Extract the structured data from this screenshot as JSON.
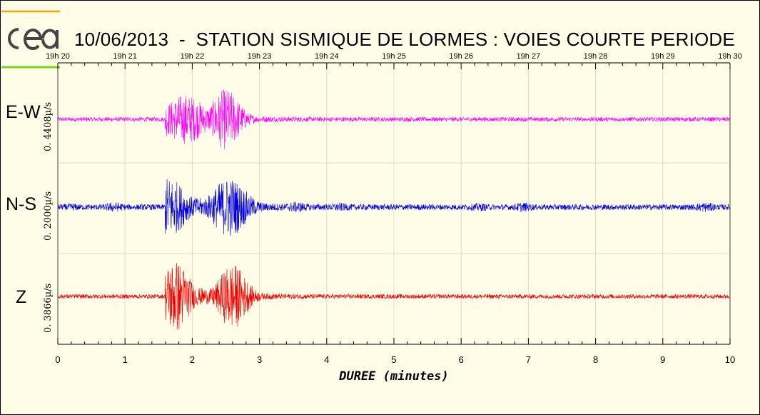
{
  "header": {
    "title": "10/06/2013  -  STATION SISMIQUE DE LORMES : VOIES COURTE PERIODE",
    "logo_text": "cea"
  },
  "chart_data": {
    "type": "line",
    "title": "10/06/2013  -  STATION SISMIQUE DE LORMES : VOIES COURTE PERIODE",
    "xlabel": "DUREE (minutes)",
    "xlim": [
      0,
      10
    ],
    "x_ticks": [
      "0",
      "1",
      "2",
      "3",
      "4",
      "5",
      "6",
      "7",
      "8",
      "9",
      "10"
    ],
    "top_ticks": [
      "19h 20",
      "19h 21",
      "19h 22",
      "19h 23",
      "19h 24",
      "19h 25",
      "19h 26",
      "19h 27",
      "19h 28",
      "19h 29",
      "19h 30"
    ],
    "grid": true,
    "event_onset_minutes": 1.6,
    "series": [
      {
        "name": "E-W",
        "amplitude_label": "0. 4408µ/s",
        "color": "#ff00ff"
      },
      {
        "name": "N-S",
        "amplitude_label": "0. 2000µ/s",
        "color": "#0000dd"
      },
      {
        "name": "Z",
        "amplitude_label": "0. 3866µ/s",
        "color": "#ee0000"
      }
    ]
  },
  "colors": {
    "background": "#fffde8",
    "logo_orange": "#f2a900",
    "logo_green": "#7ed321"
  }
}
